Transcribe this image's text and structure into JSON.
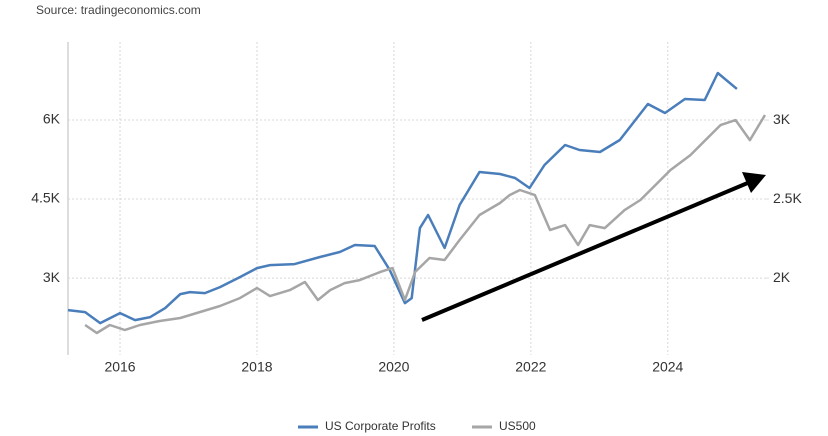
{
  "source": "Source: tradingeconomics.com",
  "chart_data": {
    "type": "line",
    "xlim": [
      2015.24,
      2025.42
    ],
    "xticks": [
      2016,
      2018,
      2020,
      2022,
      2024
    ],
    "ylim": [
      1540,
      7480
    ],
    "yticks": [
      {
        "value": 3000,
        "label": "3K"
      },
      {
        "value": 4500,
        "label": "4.5K"
      },
      {
        "value": 6000,
        "label": "6K"
      }
    ],
    "y2lim": [
      1513,
      3494
    ],
    "y2ticks": [
      {
        "value": 2000,
        "label": "2K"
      },
      {
        "value": 2500,
        "label": "2.5K"
      },
      {
        "value": 3000,
        "label": "3K"
      }
    ],
    "grid": true,
    "legend": "bottom",
    "series": [
      {
        "name": "US Corporate Profits",
        "color": "#4a7ebb",
        "x": [
          2015.24,
          2015.49,
          2015.71,
          2016.0,
          2016.22,
          2016.44,
          2016.66,
          2016.88,
          2017.02,
          2017.24,
          2017.46,
          2017.75,
          2018.0,
          2018.19,
          2018.55,
          2018.92,
          2019.21,
          2019.43,
          2019.72,
          2019.94,
          2020.16,
          2020.26,
          2020.38,
          2020.5,
          2020.74,
          2020.96,
          2021.25,
          2021.55,
          2021.77,
          2021.98,
          2022.2,
          2022.5,
          2022.71,
          2023.01,
          2023.3,
          2023.71,
          2023.96,
          2024.25,
          2024.54,
          2024.73,
          2025.01
        ],
        "values": [
          2392,
          2354,
          2146,
          2335,
          2203,
          2260,
          2430,
          2696,
          2734,
          2715,
          2829,
          3019,
          3190,
          3247,
          3266,
          3399,
          3494,
          3627,
          3608,
          3152,
          2525,
          2620,
          3949,
          4196,
          3570,
          4386,
          5013,
          4975,
          4899,
          4709,
          5146,
          5525,
          5430,
          5392,
          5620,
          6304,
          6133,
          6399,
          6380,
          6892,
          6589
        ]
      },
      {
        "name": "US500",
        "color": "#a6a6a6",
        "axis": "y2",
        "x": [
          2015.49,
          2015.66,
          2015.85,
          2016.07,
          2016.29,
          2016.58,
          2016.88,
          2017.17,
          2017.46,
          2017.75,
          2018.0,
          2018.19,
          2018.48,
          2018.7,
          2018.89,
          2019.07,
          2019.28,
          2019.5,
          2019.8,
          2019.98,
          2020.16,
          2020.31,
          2020.52,
          2020.74,
          2020.96,
          2021.25,
          2021.55,
          2021.69,
          2021.84,
          2022.06,
          2022.28,
          2022.5,
          2022.69,
          2022.86,
          2023.08,
          2023.37,
          2023.6,
          2023.82,
          2024.04,
          2024.33,
          2024.55,
          2024.77,
          2024.99,
          2025.2,
          2025.42
        ],
        "values": [
          1703,
          1652,
          1703,
          1671,
          1703,
          1728,
          1747,
          1785,
          1823,
          1873,
          1937,
          1886,
          1924,
          1975,
          1861,
          1924,
          1968,
          1987,
          2038,
          2063,
          1861,
          2038,
          2127,
          2114,
          2241,
          2399,
          2475,
          2525,
          2557,
          2525,
          2304,
          2335,
          2209,
          2335,
          2316,
          2430,
          2494,
          2589,
          2684,
          2778,
          2873,
          2968,
          3000,
          2873,
          3032
        ]
      }
    ]
  }
}
